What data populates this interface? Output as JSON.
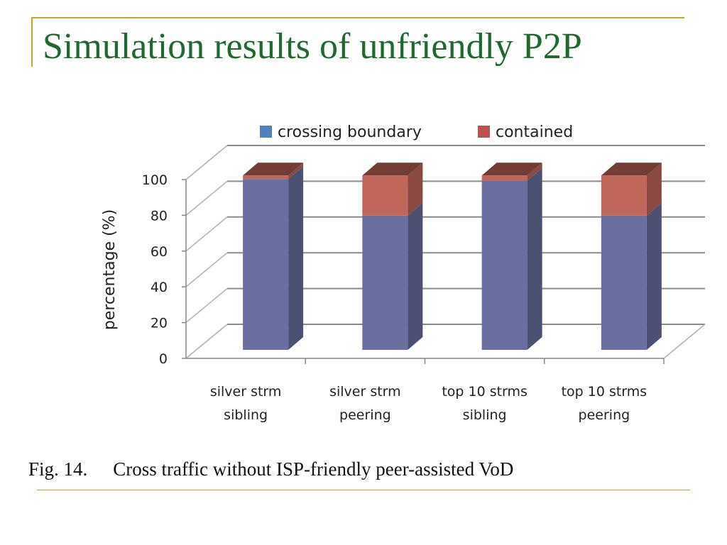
{
  "slide": {
    "title": "Simulation results of unfriendly P2P",
    "accent_color": "#c9a227",
    "title_color": "#1e6a2e"
  },
  "caption": {
    "figure_label": "Fig. 14.",
    "text": "Cross traffic without ISP-friendly peer-assisted VoD"
  },
  "chart_data": {
    "type": "bar",
    "stacked": true,
    "three_d": true,
    "categories": [
      [
        "silver strm",
        "sibling"
      ],
      [
        "silver strm",
        "peering"
      ],
      [
        "top 10 strms",
        "sibling"
      ],
      [
        "top 10 strms",
        "peering"
      ]
    ],
    "series": [
      {
        "name": "crossing boundary",
        "values": [
          98,
          77,
          97,
          77
        ],
        "color": "#6a6fa0",
        "legend_color": "#4f81bd"
      },
      {
        "name": "contained",
        "values": [
          2,
          23,
          3,
          23
        ],
        "color": "#c0665a",
        "legend_color": "#c0504d"
      }
    ],
    "xlabel": "",
    "ylabel": "percentage (%)",
    "ylim": [
      0,
      100
    ],
    "yticks": [
      0,
      20,
      40,
      60,
      80,
      100
    ],
    "grid": true,
    "legend_position": "top"
  }
}
